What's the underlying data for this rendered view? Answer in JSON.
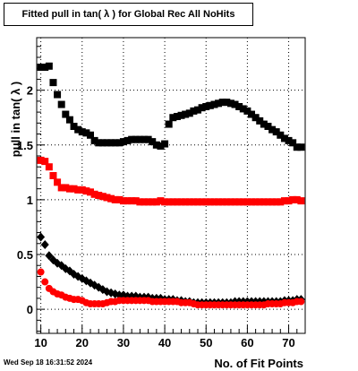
{
  "chart_data": {
    "type": "scatter",
    "title": "Fitted pull in tan( λ ) for Global Rec All NoHits",
    "xlabel": "No. of Fit Points",
    "ylabel": "pull in tan( λ )",
    "xlim": [
      9,
      74
    ],
    "ylim": [
      -0.22,
      2.48
    ],
    "x_ticks": [
      10,
      20,
      30,
      40,
      50,
      60,
      70
    ],
    "y_ticks": [
      0,
      0.5,
      1,
      1.5,
      2
    ],
    "grid": true,
    "series": [
      {
        "marker": "square",
        "color": "#000000",
        "points": [
          [
            10,
            2.21
          ],
          [
            11,
            2.21
          ],
          [
            12,
            2.22
          ],
          [
            13,
            2.07
          ],
          [
            14,
            1.96
          ],
          [
            15,
            1.87
          ],
          [
            16,
            1.78
          ],
          [
            17,
            1.73
          ],
          [
            18,
            1.67
          ],
          [
            19,
            1.64
          ],
          [
            20,
            1.62
          ],
          [
            21,
            1.61
          ],
          [
            22,
            1.59
          ],
          [
            23,
            1.54
          ],
          [
            24,
            1.52
          ],
          [
            25,
            1.52
          ],
          [
            26,
            1.52
          ],
          [
            27,
            1.52
          ],
          [
            28,
            1.52
          ],
          [
            29,
            1.52
          ],
          [
            30,
            1.53
          ],
          [
            31,
            1.54
          ],
          [
            32,
            1.55
          ],
          [
            33,
            1.55
          ],
          [
            34,
            1.55
          ],
          [
            35,
            1.55
          ],
          [
            36,
            1.55
          ],
          [
            37,
            1.53
          ],
          [
            38,
            1.5
          ],
          [
            39,
            1.49
          ],
          [
            40,
            1.51
          ],
          [
            41,
            1.69
          ],
          [
            42,
            1.75
          ],
          [
            43,
            1.76
          ],
          [
            44,
            1.77
          ],
          [
            45,
            1.78
          ],
          [
            46,
            1.79
          ],
          [
            47,
            1.81
          ],
          [
            48,
            1.82
          ],
          [
            49,
            1.84
          ],
          [
            50,
            1.85
          ],
          [
            51,
            1.86
          ],
          [
            52,
            1.87
          ],
          [
            53,
            1.88
          ],
          [
            54,
            1.89
          ],
          [
            55,
            1.89
          ],
          [
            56,
            1.88
          ],
          [
            57,
            1.87
          ],
          [
            58,
            1.85
          ],
          [
            59,
            1.83
          ],
          [
            60,
            1.81
          ],
          [
            61,
            1.78
          ],
          [
            62,
            1.75
          ],
          [
            63,
            1.72
          ],
          [
            64,
            1.69
          ],
          [
            65,
            1.67
          ],
          [
            66,
            1.64
          ],
          [
            67,
            1.62
          ],
          [
            68,
            1.59
          ],
          [
            69,
            1.56
          ],
          [
            70,
            1.54
          ],
          [
            71,
            1.52
          ],
          [
            72,
            1.48
          ],
          [
            73,
            1.48
          ]
        ]
      },
      {
        "marker": "square",
        "color": "#ff0000",
        "points": [
          [
            10,
            1.36
          ],
          [
            11,
            1.35
          ],
          [
            12,
            1.3
          ],
          [
            13,
            1.22
          ],
          [
            14,
            1.16
          ],
          [
            15,
            1.11
          ],
          [
            16,
            1.11
          ],
          [
            17,
            1.1
          ],
          [
            18,
            1.1
          ],
          [
            19,
            1.09
          ],
          [
            20,
            1.09
          ],
          [
            21,
            1.08
          ],
          [
            22,
            1.07
          ],
          [
            23,
            1.05
          ],
          [
            24,
            1.04
          ],
          [
            25,
            1.03
          ],
          [
            26,
            1.02
          ],
          [
            27,
            1.01
          ],
          [
            28,
            1.0
          ],
          [
            29,
            1.0
          ],
          [
            30,
            0.99
          ],
          [
            31,
            0.99
          ],
          [
            32,
            0.99
          ],
          [
            33,
            0.99
          ],
          [
            34,
            0.98
          ],
          [
            35,
            0.98
          ],
          [
            36,
            0.98
          ],
          [
            37,
            0.98
          ],
          [
            38,
            0.98
          ],
          [
            39,
            0.99
          ],
          [
            40,
            0.98
          ],
          [
            41,
            0.98
          ],
          [
            42,
            0.98
          ],
          [
            43,
            0.98
          ],
          [
            44,
            0.98
          ],
          [
            45,
            0.98
          ],
          [
            46,
            0.98
          ],
          [
            47,
            0.98
          ],
          [
            48,
            0.98
          ],
          [
            49,
            0.98
          ],
          [
            50,
            0.98
          ],
          [
            51,
            0.98
          ],
          [
            52,
            0.98
          ],
          [
            53,
            0.98
          ],
          [
            54,
            0.98
          ],
          [
            55,
            0.98
          ],
          [
            56,
            0.98
          ],
          [
            57,
            0.98
          ],
          [
            58,
            0.98
          ],
          [
            59,
            0.98
          ],
          [
            60,
            0.98
          ],
          [
            61,
            0.98
          ],
          [
            62,
            0.98
          ],
          [
            63,
            0.98
          ],
          [
            64,
            0.98
          ],
          [
            65,
            0.98
          ],
          [
            66,
            0.98
          ],
          [
            67,
            0.98
          ],
          [
            68,
            0.98
          ],
          [
            69,
            0.99
          ],
          [
            70,
            0.99
          ],
          [
            71,
            1.0
          ],
          [
            72,
            1.0
          ],
          [
            73,
            0.99
          ]
        ]
      },
      {
        "marker": "diamond",
        "color": "#000000",
        "points": [
          [
            10,
            0.66
          ],
          [
            11,
            0.59
          ],
          [
            12,
            0.49
          ],
          [
            13,
            0.45
          ],
          [
            14,
            0.42
          ],
          [
            15,
            0.4
          ],
          [
            16,
            0.37
          ],
          [
            17,
            0.35
          ],
          [
            18,
            0.32
          ],
          [
            19,
            0.3
          ],
          [
            20,
            0.28
          ],
          [
            21,
            0.26
          ],
          [
            22,
            0.24
          ],
          [
            23,
            0.22
          ],
          [
            24,
            0.2
          ],
          [
            25,
            0.18
          ],
          [
            26,
            0.16
          ],
          [
            27,
            0.15
          ],
          [
            28,
            0.14
          ],
          [
            29,
            0.13
          ],
          [
            30,
            0.13
          ],
          [
            31,
            0.12
          ],
          [
            32,
            0.12
          ],
          [
            33,
            0.12
          ],
          [
            34,
            0.11
          ],
          [
            35,
            0.11
          ],
          [
            36,
            0.11
          ],
          [
            37,
            0.1
          ],
          [
            38,
            0.1
          ],
          [
            39,
            0.1
          ],
          [
            40,
            0.09
          ],
          [
            41,
            0.09
          ],
          [
            42,
            0.09
          ],
          [
            43,
            0.08
          ],
          [
            44,
            0.08
          ],
          [
            45,
            0.07
          ],
          [
            46,
            0.07
          ],
          [
            47,
            0.06
          ],
          [
            48,
            0.06
          ],
          [
            49,
            0.06
          ],
          [
            50,
            0.06
          ],
          [
            51,
            0.06
          ],
          [
            52,
            0.06
          ],
          [
            53,
            0.06
          ],
          [
            54,
            0.06
          ],
          [
            55,
            0.06
          ],
          [
            56,
            0.06
          ],
          [
            57,
            0.07
          ],
          [
            58,
            0.07
          ],
          [
            59,
            0.07
          ],
          [
            60,
            0.07
          ],
          [
            61,
            0.07
          ],
          [
            62,
            0.07
          ],
          [
            63,
            0.07
          ],
          [
            64,
            0.07
          ],
          [
            65,
            0.07
          ],
          [
            66,
            0.07
          ],
          [
            67,
            0.07
          ],
          [
            68,
            0.07
          ],
          [
            69,
            0.08
          ],
          [
            70,
            0.08
          ],
          [
            71,
            0.08
          ],
          [
            72,
            0.09
          ],
          [
            73,
            0.09
          ]
        ]
      },
      {
        "marker": "circle",
        "color": "#ff0000",
        "points": [
          [
            10,
            0.34
          ],
          [
            11,
            0.25
          ],
          [
            12,
            0.19
          ],
          [
            13,
            0.16
          ],
          [
            14,
            0.14
          ],
          [
            15,
            0.13
          ],
          [
            16,
            0.11
          ],
          [
            17,
            0.1
          ],
          [
            18,
            0.09
          ],
          [
            19,
            0.09
          ],
          [
            20,
            0.08
          ],
          [
            21,
            0.06
          ],
          [
            22,
            0.05
          ],
          [
            23,
            0.05
          ],
          [
            24,
            0.05
          ],
          [
            25,
            0.05
          ],
          [
            26,
            0.06
          ],
          [
            27,
            0.07
          ],
          [
            28,
            0.07
          ],
          [
            29,
            0.08
          ],
          [
            30,
            0.08
          ],
          [
            31,
            0.08
          ],
          [
            32,
            0.08
          ],
          [
            33,
            0.08
          ],
          [
            34,
            0.08
          ],
          [
            35,
            0.08
          ],
          [
            36,
            0.08
          ],
          [
            37,
            0.07
          ],
          [
            38,
            0.07
          ],
          [
            39,
            0.07
          ],
          [
            40,
            0.07
          ],
          [
            41,
            0.07
          ],
          [
            42,
            0.07
          ],
          [
            43,
            0.07
          ],
          [
            44,
            0.06
          ],
          [
            45,
            0.06
          ],
          [
            46,
            0.06
          ],
          [
            47,
            0.05
          ],
          [
            48,
            0.04
          ],
          [
            49,
            0.04
          ],
          [
            50,
            0.04
          ],
          [
            51,
            0.04
          ],
          [
            52,
            0.04
          ],
          [
            53,
            0.04
          ],
          [
            54,
            0.04
          ],
          [
            55,
            0.04
          ],
          [
            56,
            0.04
          ],
          [
            57,
            0.04
          ],
          [
            58,
            0.04
          ],
          [
            59,
            0.04
          ],
          [
            60,
            0.04
          ],
          [
            61,
            0.04
          ],
          [
            62,
            0.04
          ],
          [
            63,
            0.04
          ],
          [
            64,
            0.04
          ],
          [
            65,
            0.05
          ],
          [
            66,
            0.05
          ],
          [
            67,
            0.05
          ],
          [
            68,
            0.05
          ],
          [
            69,
            0.06
          ],
          [
            70,
            0.06
          ],
          [
            71,
            0.06
          ],
          [
            72,
            0.07
          ],
          [
            73,
            0.07
          ]
        ]
      }
    ]
  },
  "footer": {
    "timestamp": "Wed Sep 18 16:31:52 2024"
  }
}
